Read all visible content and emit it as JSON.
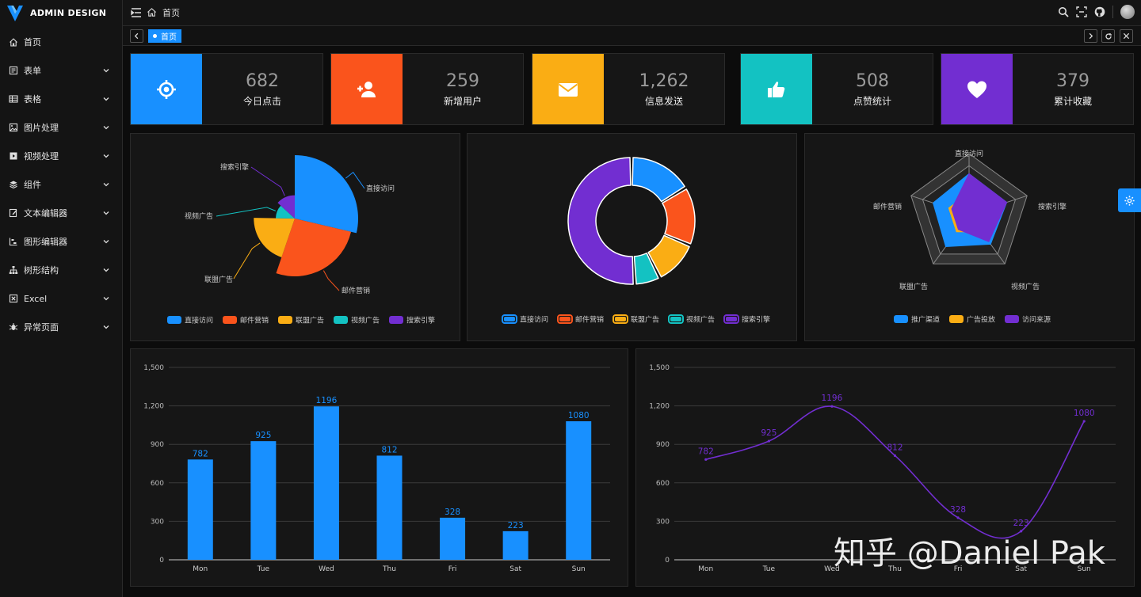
{
  "app": {
    "logo_text": "ADMIN DESIGN"
  },
  "sidebar": {
    "items": [
      {
        "label": "首页",
        "icon": "home-icon",
        "has_children": false
      },
      {
        "label": "表单",
        "icon": "form-icon",
        "has_children": true
      },
      {
        "label": "表格",
        "icon": "table-icon",
        "has_children": true
      },
      {
        "label": "图片处理",
        "icon": "image-icon",
        "has_children": true
      },
      {
        "label": "视频处理",
        "icon": "video-icon",
        "has_children": true
      },
      {
        "label": "组件",
        "icon": "layers-icon",
        "has_children": true
      },
      {
        "label": "文本编辑器",
        "icon": "edit-icon",
        "has_children": true
      },
      {
        "label": "图形编辑器",
        "icon": "graph-editor-icon",
        "has_children": true
      },
      {
        "label": "树形结构",
        "icon": "tree-icon",
        "has_children": true
      },
      {
        "label": "Excel",
        "icon": "excel-icon",
        "has_children": true
      },
      {
        "label": "异常页面",
        "icon": "bug-icon",
        "has_children": true
      }
    ]
  },
  "header": {
    "breadcrumb": "首页"
  },
  "tabs": {
    "active_label": "首页"
  },
  "stats": [
    {
      "value": "682",
      "label": "今日点击",
      "color": "#1890ff",
      "icon": "target-icon"
    },
    {
      "value": "259",
      "label": "新增用户",
      "color": "#fa541c",
      "icon": "user-add-icon"
    },
    {
      "value": "1,262",
      "label": "信息发送",
      "color": "#faad14",
      "icon": "mail-icon"
    },
    {
      "value": "508",
      "label": "点赞统计",
      "color": "#13c2c2",
      "icon": "thumbs-up-icon"
    },
    {
      "value": "379",
      "label": "累计收藏",
      "color": "#722ed1",
      "icon": "heart-icon"
    }
  ],
  "watermark": "知乎 @Daniel Pak",
  "chart_data": [
    {
      "type": "pie",
      "variant": "rose",
      "slices": [
        {
          "name": "直接访问",
          "value": 335,
          "color": "#1890ff"
        },
        {
          "name": "邮件营销",
          "value": 310,
          "color": "#fa541c"
        },
        {
          "name": "联盟广告",
          "value": 234,
          "color": "#faad14"
        },
        {
          "name": "视频广告",
          "value": 135,
          "color": "#13c2c2"
        },
        {
          "name": "搜索引擎",
          "value": 154,
          "color": "#722ed1"
        }
      ],
      "legend": [
        "直接访问",
        "邮件营销",
        "联盟广告",
        "视频广告",
        "搜索引擎"
      ],
      "legend_position": "bottom"
    },
    {
      "type": "pie",
      "variant": "donut",
      "slices": [
        {
          "name": "直接访问",
          "value": 335,
          "color": "#1890ff"
        },
        {
          "name": "邮件营销",
          "value": 310,
          "color": "#fa541c"
        },
        {
          "name": "联盟广告",
          "value": 234,
          "color": "#faad14"
        },
        {
          "name": "视频广告",
          "value": 135,
          "color": "#13c2c2"
        },
        {
          "name": "搜索引擎",
          "value": 1048,
          "color": "#722ed1"
        }
      ],
      "legend": [
        "直接访问",
        "邮件营销",
        "联盟广告",
        "视频广告",
        "搜索引擎"
      ],
      "legend_position": "bottom"
    },
    {
      "type": "radar",
      "indicators": [
        "直接访问",
        "搜索引擎",
        "视频广告",
        "联盟广告",
        "邮件营销"
      ],
      "series": [
        {
          "name": "推广渠道",
          "values": [
            0.67,
            0.65,
            0.6,
            0.65,
            0.62
          ],
          "color": "#1890ff"
        },
        {
          "name": "广告投放",
          "values": [
            0.35,
            0.35,
            0.35,
            0.35,
            0.35
          ],
          "color": "#faad14"
        },
        {
          "name": "访问来源",
          "values": [
            0.67,
            0.65,
            0.55,
            0.3,
            0.3
          ],
          "color": "#722ed1"
        }
      ],
      "legend_position": "bottom"
    },
    {
      "type": "bar",
      "categories": [
        "Mon",
        "Tue",
        "Wed",
        "Thu",
        "Fri",
        "Sat",
        "Sun"
      ],
      "values": [
        782,
        925,
        1196,
        812,
        328,
        223,
        1080
      ],
      "ylim": [
        0,
        1500
      ],
      "yticks": [
        "0",
        "300",
        "600",
        "900",
        "1,200",
        "1,500"
      ],
      "color": "#1890ff",
      "grid": true
    },
    {
      "type": "line",
      "smooth": true,
      "categories": [
        "Mon",
        "Tue",
        "Wed",
        "Thu",
        "Fri",
        "Sat",
        "Sun"
      ],
      "values": [
        782,
        925,
        1196,
        812,
        328,
        223,
        1080
      ],
      "ylim": [
        0,
        1500
      ],
      "yticks": [
        "0",
        "300",
        "600",
        "900",
        "1,200",
        "1,500"
      ],
      "color": "#722ed1",
      "grid": true
    }
  ]
}
